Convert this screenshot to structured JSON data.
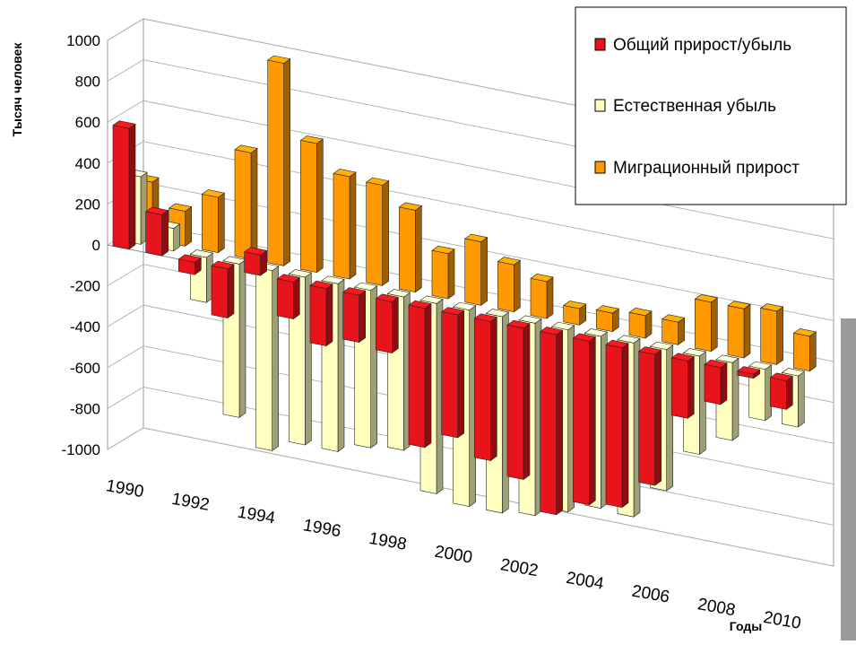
{
  "chart_data": {
    "type": "bar",
    "style": "3d-clustered-columns",
    "title": "",
    "ylabel": "Тысяч человек",
    "xlabel": "Годы",
    "ylim": [
      -1000,
      1000
    ],
    "yticks": [
      1000,
      800,
      600,
      400,
      200,
      0,
      -200,
      -400,
      -600,
      -800,
      -1000
    ],
    "xtick_labels": [
      "1990",
      "1992",
      "1994",
      "1996",
      "1998",
      "2000",
      "2002",
      "2004",
      "2006",
      "2008",
      "2010"
    ],
    "legend_position": "top-right",
    "grid": true,
    "categories": [
      "1990",
      "1991",
      "1992",
      "1993",
      "1994",
      "1995",
      "1996",
      "1997",
      "1998",
      "1999",
      "2000",
      "2001",
      "2002",
      "2003",
      "2004",
      "2005",
      "2006",
      "2007",
      "2008",
      "2009",
      "2010"
    ],
    "series": [
      {
        "name": "Общий прирост/убыль",
        "color": "#e8141c",
        "values": [
          590,
          200,
          -60,
          -240,
          100,
          -180,
          -280,
          -230,
          -250,
          -680,
          -600,
          -680,
          -740,
          -880,
          -800,
          -780,
          -640,
          -280,
          -180,
          -20,
          -140
        ]
      },
      {
        "name": "Естественная убыль",
        "color": "#ffffc0",
        "values": [
          330,
          110,
          -220,
          -750,
          -880,
          -820,
          -820,
          -770,
          -750,
          -930,
          -960,
          -960,
          -940,
          -890,
          -840,
          -850,
          -690,
          -480,
          -380,
          -250,
          -250
        ]
      },
      {
        "name": "Миграционный прирост",
        "color": "#ff9900",
        "values": [
          280,
          170,
          270,
          520,
          990,
          630,
          500,
          490,
          400,
          220,
          310,
          230,
          180,
          80,
          90,
          110,
          110,
          240,
          240,
          260,
          170
        ]
      }
    ]
  }
}
